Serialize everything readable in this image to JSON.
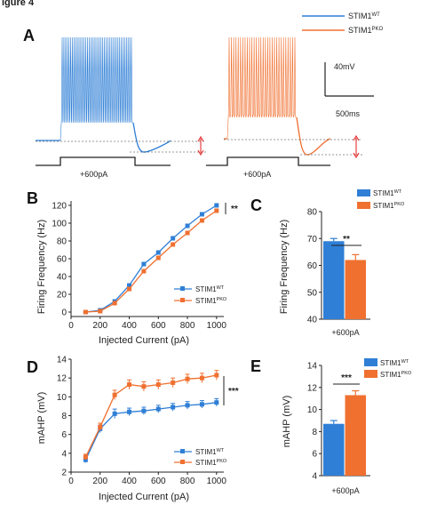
{
  "figure": {
    "header": "igure 4",
    "colors": {
      "wt": "#2f7fd6",
      "pko": "#f07030",
      "axis": "#222222",
      "red": "#e53030"
    }
  },
  "panelA": {
    "letter": "A",
    "legend": [
      "STIM1WT",
      "STIM1PKO"
    ],
    "legend_main": [
      "STIM1",
      "STIM1"
    ],
    "legend_sup": [
      "WT",
      "PKO"
    ],
    "scale_v": "40mV",
    "scale_t": "500ms",
    "stim_labels": [
      "+600pA",
      "+600pA"
    ]
  },
  "chart_data": [
    {
      "panel": "B",
      "type": "line",
      "xlabel": "Injected Current (pA)",
      "ylabel": "Firing Frequency (Hz)",
      "x": [
        100,
        200,
        300,
        400,
        500,
        600,
        700,
        800,
        900,
        1000
      ],
      "xticks": [
        0,
        200,
        400,
        600,
        800,
        1000
      ],
      "yticks": [
        0,
        20,
        40,
        60,
        80,
        100,
        120
      ],
      "xlim": [
        0,
        1050
      ],
      "ylim": [
        -5,
        125
      ],
      "series": [
        {
          "name": "STIM1WT",
          "values": [
            0,
            2,
            12,
            30,
            54,
            67,
            83,
            97,
            110,
            120
          ]
        },
        {
          "name": "STIM1PKO",
          "values": [
            0,
            1,
            10,
            26,
            46,
            61,
            76,
            89,
            103,
            114
          ]
        }
      ],
      "legend_main": [
        "STIM1",
        "STIM1"
      ],
      "legend_sup": [
        "WT",
        "PKO"
      ],
      "sig": "**",
      "legend": "bottom-right"
    },
    {
      "panel": "C",
      "type": "bar",
      "ylabel": "Firing Frequency (Hz)",
      "categories": [
        "+600pA"
      ],
      "yticks": [
        40,
        50,
        60,
        70,
        80
      ],
      "ylim": [
        40,
        80
      ],
      "series": [
        {
          "name": "STIM1WT",
          "values": [
            69
          ],
          "err": [
            1
          ]
        },
        {
          "name": "STIM1PKO",
          "values": [
            62
          ],
          "err": [
            2
          ]
        }
      ],
      "legend_main": [
        "STIM1",
        "STIM1"
      ],
      "legend_sup": [
        "WT",
        "PKO"
      ],
      "sig": "**",
      "legend": "top-right"
    },
    {
      "panel": "D",
      "type": "line",
      "xlabel": "Injected Current (pA)",
      "ylabel": "mAHP (mV)",
      "x": [
        100,
        200,
        300,
        400,
        500,
        600,
        700,
        800,
        900,
        1000
      ],
      "xticks": [
        0,
        200,
        400,
        600,
        800,
        1000
      ],
      "yticks": [
        2,
        4,
        6,
        8,
        10,
        12,
        14
      ],
      "xlim": [
        0,
        1050
      ],
      "ylim": [
        2,
        14
      ],
      "series": [
        {
          "name": "STIM1WT",
          "values": [
            3.3,
            6.6,
            8.2,
            8.4,
            8.5,
            8.7,
            8.9,
            9.1,
            9.2,
            9.4
          ],
          "err": [
            0.3,
            0.4,
            0.5,
            0.4,
            0.4,
            0.4,
            0.4,
            0.4,
            0.4,
            0.4
          ]
        },
        {
          "name": "STIM1PKO",
          "values": [
            3.6,
            6.8,
            10.2,
            11.3,
            11.1,
            11.3,
            11.5,
            11.9,
            12.0,
            12.3
          ],
          "err": [
            0.3,
            0.4,
            0.5,
            0.5,
            0.5,
            0.5,
            0.5,
            0.5,
            0.5,
            0.5
          ]
        }
      ],
      "legend_main": [
        "STIM1",
        "STIM1"
      ],
      "legend_sup": [
        "WT",
        "PKO"
      ],
      "sig": "***",
      "legend": "bottom-right"
    },
    {
      "panel": "E",
      "type": "bar",
      "ylabel": "mAHP (mV)",
      "categories": [
        "+600pA"
      ],
      "yticks": [
        4,
        6,
        8,
        10,
        12,
        14
      ],
      "ylim": [
        4,
        14
      ],
      "series": [
        {
          "name": "STIM1WT",
          "values": [
            8.7
          ],
          "err": [
            0.3
          ]
        },
        {
          "name": "STIM1PKO",
          "values": [
            11.3
          ],
          "err": [
            0.4
          ]
        }
      ],
      "legend_main": [
        "STIM1",
        "STIM1"
      ],
      "legend_sup": [
        "WT",
        "PKO"
      ],
      "sig": "***",
      "legend": "top-right"
    }
  ]
}
